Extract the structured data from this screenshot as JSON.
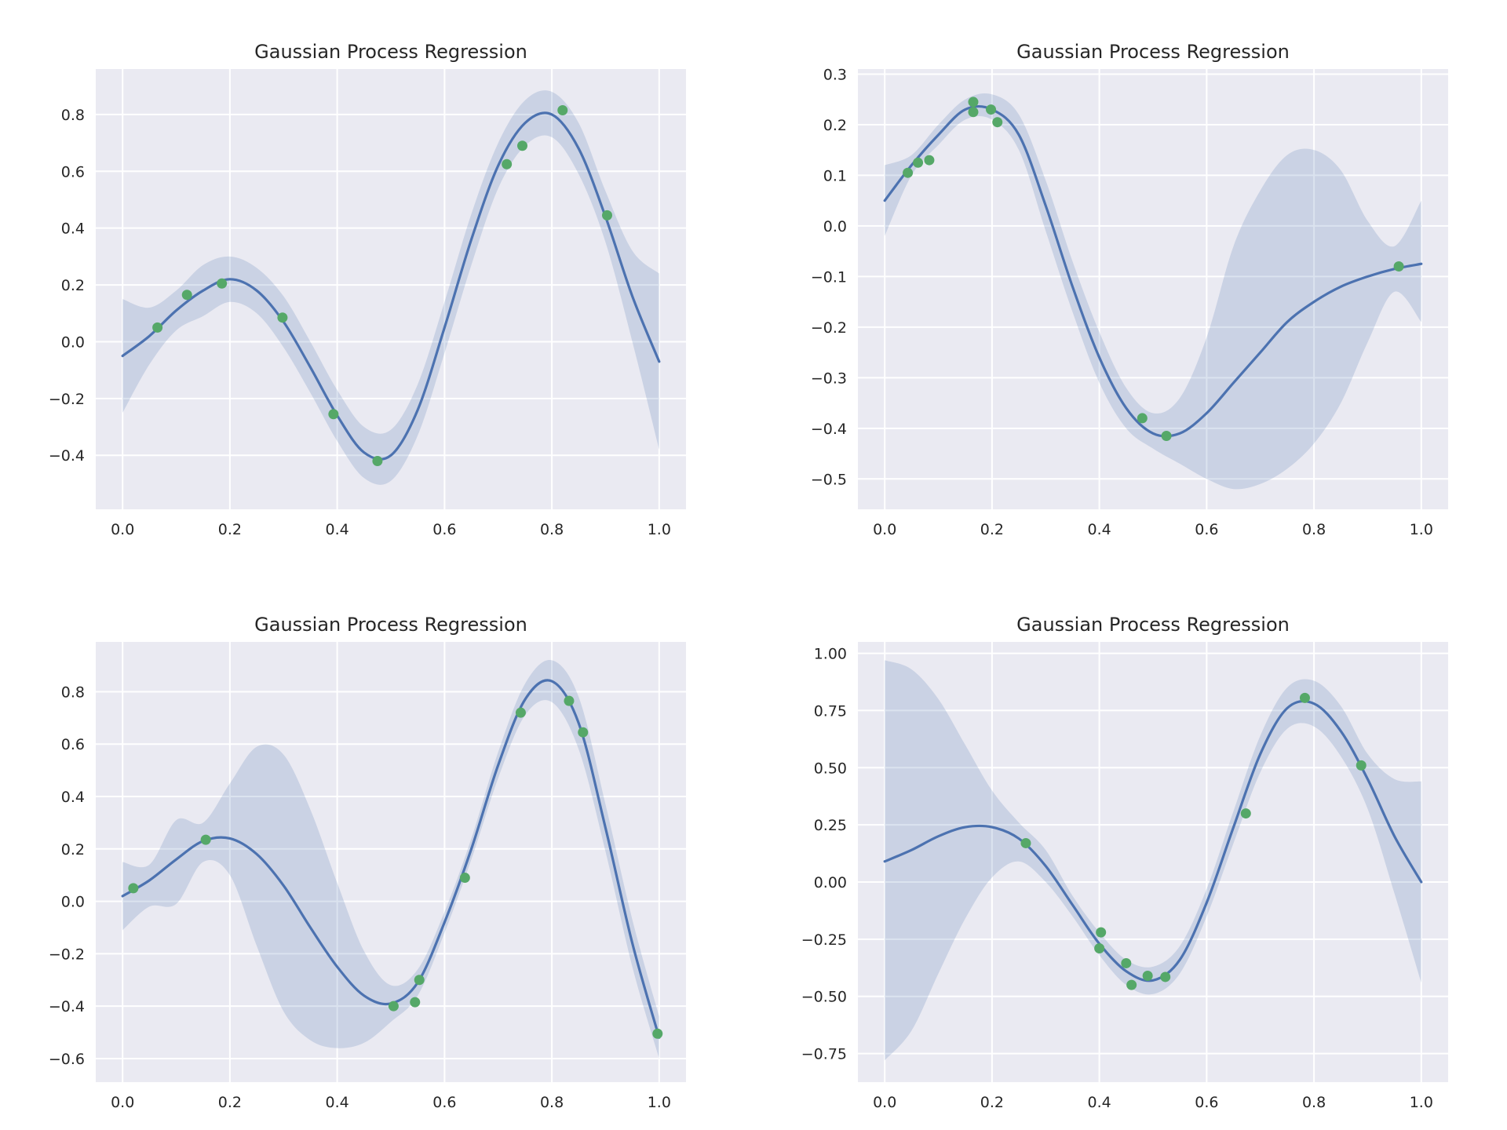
{
  "chart_data": [
    {
      "type": "line",
      "title": "Gaussian Process Regression",
      "xlim": [
        -0.05,
        1.05
      ],
      "ylim": [
        -0.59,
        0.96
      ],
      "xticks": [
        "0.0",
        "0.2",
        "0.4",
        "0.6",
        "0.8",
        "1.0"
      ],
      "yticks": [
        "−0.4",
        "−0.2",
        "0.0",
        "0.2",
        "0.4",
        "0.6",
        "0.8"
      ],
      "series": [
        {
          "role": "mean",
          "x": [
            0.0,
            0.05,
            0.1,
            0.15,
            0.2,
            0.25,
            0.3,
            0.35,
            0.4,
            0.45,
            0.5,
            0.55,
            0.6,
            0.65,
            0.7,
            0.75,
            0.8,
            0.85,
            0.9,
            0.95,
            1.0
          ],
          "y": [
            -0.05,
            0.02,
            0.11,
            0.18,
            0.22,
            0.18,
            0.07,
            -0.09,
            -0.26,
            -0.39,
            -0.4,
            -0.24,
            0.05,
            0.36,
            0.62,
            0.77,
            0.8,
            0.68,
            0.44,
            0.16,
            -0.07
          ]
        },
        {
          "role": "confidence-band",
          "x": [
            0.0,
            0.05,
            0.1,
            0.15,
            0.2,
            0.25,
            0.3,
            0.35,
            0.4,
            0.45,
            0.5,
            0.55,
            0.6,
            0.65,
            0.7,
            0.75,
            0.8,
            0.85,
            0.9,
            0.95,
            1.0
          ],
          "upper": [
            0.15,
            0.12,
            0.18,
            0.27,
            0.3,
            0.26,
            0.16,
            0.0,
            -0.17,
            -0.3,
            -0.31,
            -0.15,
            0.14,
            0.45,
            0.7,
            0.85,
            0.88,
            0.77,
            0.53,
            0.32,
            0.24
          ],
          "lower": [
            -0.25,
            -0.08,
            0.04,
            0.09,
            0.14,
            0.1,
            -0.02,
            -0.18,
            -0.35,
            -0.48,
            -0.49,
            -0.33,
            -0.04,
            0.27,
            0.54,
            0.69,
            0.72,
            0.59,
            0.35,
            0.0,
            -0.38
          ]
        },
        {
          "role": "observations",
          "x": [
            0.065,
            0.12,
            0.185,
            0.298,
            0.393,
            0.475,
            0.716,
            0.745,
            0.82,
            0.903
          ],
          "y": [
            0.05,
            0.165,
            0.205,
            0.085,
            -0.255,
            -0.42,
            0.625,
            0.69,
            0.815,
            0.445
          ]
        }
      ]
    },
    {
      "type": "line",
      "title": "Gaussian Process Regression",
      "xlim": [
        -0.05,
        1.05
      ],
      "ylim": [
        -0.56,
        0.31
      ],
      "xticks": [
        "0.0",
        "0.2",
        "0.4",
        "0.6",
        "0.8",
        "1.0"
      ],
      "yticks": [
        "−0.5",
        "−0.4",
        "−0.3",
        "−0.2",
        "−0.1",
        "0.0",
        "0.1",
        "0.2",
        "0.3"
      ],
      "series": [
        {
          "role": "mean",
          "x": [
            0.0,
            0.05,
            0.1,
            0.15,
            0.2,
            0.25,
            0.3,
            0.35,
            0.4,
            0.45,
            0.5,
            0.55,
            0.6,
            0.65,
            0.7,
            0.75,
            0.8,
            0.85,
            0.9,
            0.95,
            1.0
          ],
          "y": [
            0.05,
            0.12,
            0.18,
            0.23,
            0.23,
            0.18,
            0.04,
            -0.12,
            -0.26,
            -0.36,
            -0.41,
            -0.41,
            -0.37,
            -0.31,
            -0.25,
            -0.19,
            -0.15,
            -0.12,
            -0.1,
            -0.085,
            -0.075
          ]
        },
        {
          "role": "confidence-band",
          "x": [
            0.0,
            0.05,
            0.1,
            0.15,
            0.2,
            0.25,
            0.3,
            0.35,
            0.4,
            0.45,
            0.5,
            0.55,
            0.6,
            0.65,
            0.7,
            0.75,
            0.8,
            0.85,
            0.9,
            0.95,
            1.0
          ],
          "upper": [
            0.12,
            0.14,
            0.2,
            0.25,
            0.26,
            0.22,
            0.09,
            -0.07,
            -0.21,
            -0.32,
            -0.37,
            -0.34,
            -0.22,
            -0.04,
            0.07,
            0.14,
            0.15,
            0.11,
            0.01,
            -0.04,
            0.05
          ],
          "lower": [
            -0.02,
            0.1,
            0.16,
            0.21,
            0.21,
            0.15,
            -0.01,
            -0.17,
            -0.31,
            -0.4,
            -0.44,
            -0.47,
            -0.5,
            -0.52,
            -0.51,
            -0.48,
            -0.43,
            -0.35,
            -0.23,
            -0.13,
            -0.19
          ]
        },
        {
          "role": "observations",
          "x": [
            0.043,
            0.062,
            0.083,
            0.165,
            0.165,
            0.198,
            0.21,
            0.48,
            0.525,
            0.958
          ],
          "y": [
            0.105,
            0.125,
            0.13,
            0.245,
            0.225,
            0.23,
            0.205,
            -0.38,
            -0.415,
            -0.08
          ]
        }
      ]
    },
    {
      "type": "line",
      "title": "Gaussian Process Regression",
      "xlim": [
        -0.05,
        1.05
      ],
      "ylim": [
        -0.69,
        0.99
      ],
      "xticks": [
        "0.0",
        "0.2",
        "0.4",
        "0.6",
        "0.8",
        "1.0"
      ],
      "yticks": [
        "−0.6",
        "−0.4",
        "−0.2",
        "0.0",
        "0.2",
        "0.4",
        "0.6",
        "0.8"
      ],
      "series": [
        {
          "role": "mean",
          "x": [
            0.0,
            0.05,
            0.1,
            0.15,
            0.2,
            0.25,
            0.3,
            0.35,
            0.4,
            0.45,
            0.5,
            0.55,
            0.6,
            0.65,
            0.7,
            0.75,
            0.8,
            0.85,
            0.9,
            0.95,
            1.0
          ],
          "y": [
            0.02,
            0.08,
            0.16,
            0.23,
            0.24,
            0.18,
            0.06,
            -0.1,
            -0.25,
            -0.36,
            -0.39,
            -0.31,
            -0.08,
            0.2,
            0.52,
            0.77,
            0.84,
            0.68,
            0.28,
            -0.16,
            -0.52
          ]
        },
        {
          "role": "confidence-band",
          "x": [
            0.0,
            0.05,
            0.1,
            0.15,
            0.2,
            0.25,
            0.3,
            0.35,
            0.4,
            0.45,
            0.5,
            0.55,
            0.6,
            0.65,
            0.7,
            0.75,
            0.8,
            0.85,
            0.9,
            0.95,
            1.0
          ],
          "upper": [
            0.15,
            0.14,
            0.31,
            0.3,
            0.45,
            0.59,
            0.56,
            0.35,
            0.07,
            -0.19,
            -0.32,
            -0.26,
            -0.04,
            0.24,
            0.57,
            0.83,
            0.92,
            0.78,
            0.37,
            -0.07,
            -0.44
          ],
          "lower": [
            -0.11,
            -0.02,
            -0.01,
            0.15,
            0.1,
            -0.17,
            -0.42,
            -0.53,
            -0.56,
            -0.54,
            -0.46,
            -0.36,
            -0.12,
            0.16,
            0.47,
            0.71,
            0.76,
            0.58,
            0.19,
            -0.25,
            -0.6
          ]
        },
        {
          "role": "observations",
          "x": [
            0.02,
            0.155,
            0.505,
            0.545,
            0.553,
            0.638,
            0.742,
            0.832,
            0.858,
            0.997
          ],
          "y": [
            0.05,
            0.235,
            -0.4,
            -0.385,
            -0.3,
            0.09,
            0.72,
            0.765,
            0.645,
            -0.505
          ]
        }
      ]
    },
    {
      "type": "line",
      "title": "Gaussian Process Regression",
      "xlim": [
        -0.05,
        1.05
      ],
      "ylim": [
        -0.875,
        1.05
      ],
      "xticks": [
        "0.0",
        "0.2",
        "0.4",
        "0.6",
        "0.8",
        "1.0"
      ],
      "yticks": [
        "−0.75",
        "−0.50",
        "−0.25",
        "0.00",
        "0.25",
        "0.50",
        "0.75",
        "1.00"
      ],
      "series": [
        {
          "role": "mean",
          "x": [
            0.0,
            0.05,
            0.1,
            0.15,
            0.2,
            0.25,
            0.3,
            0.35,
            0.4,
            0.45,
            0.5,
            0.55,
            0.6,
            0.65,
            0.7,
            0.75,
            0.8,
            0.85,
            0.9,
            0.95,
            1.0
          ],
          "y": [
            0.09,
            0.14,
            0.2,
            0.24,
            0.24,
            0.19,
            0.07,
            -0.1,
            -0.27,
            -0.39,
            -0.43,
            -0.34,
            -0.09,
            0.24,
            0.56,
            0.76,
            0.78,
            0.66,
            0.45,
            0.2,
            0.0
          ]
        },
        {
          "role": "confidence-band",
          "x": [
            0.0,
            0.05,
            0.1,
            0.15,
            0.2,
            0.25,
            0.3,
            0.35,
            0.4,
            0.45,
            0.5,
            0.55,
            0.6,
            0.65,
            0.7,
            0.75,
            0.8,
            0.85,
            0.9,
            0.95,
            1.0
          ],
          "upper": [
            0.97,
            0.93,
            0.8,
            0.6,
            0.4,
            0.26,
            0.14,
            -0.06,
            -0.22,
            -0.34,
            -0.37,
            -0.28,
            -0.03,
            0.31,
            0.64,
            0.85,
            0.88,
            0.77,
            0.56,
            0.45,
            0.44
          ],
          "lower": [
            -0.78,
            -0.65,
            -0.4,
            -0.16,
            0.02,
            0.09,
            0.0,
            -0.15,
            -0.32,
            -0.45,
            -0.49,
            -0.4,
            -0.15,
            0.17,
            0.48,
            0.67,
            0.68,
            0.55,
            0.32,
            -0.05,
            -0.44
          ]
        },
        {
          "role": "observations",
          "x": [
            0.263,
            0.4,
            0.403,
            0.45,
            0.46,
            0.49,
            0.523,
            0.673,
            0.783,
            0.888
          ],
          "y": [
            0.17,
            -0.29,
            -0.22,
            -0.355,
            -0.45,
            -0.41,
            -0.415,
            0.3,
            0.805,
            0.51
          ]
        }
      ]
    }
  ],
  "colors": {
    "axes_bg": "#eaeaf2",
    "grid": "#ffffff",
    "mean_line": "#4c72b0",
    "band": "#4c72b0",
    "points": "#55a868",
    "text": "#262626"
  }
}
